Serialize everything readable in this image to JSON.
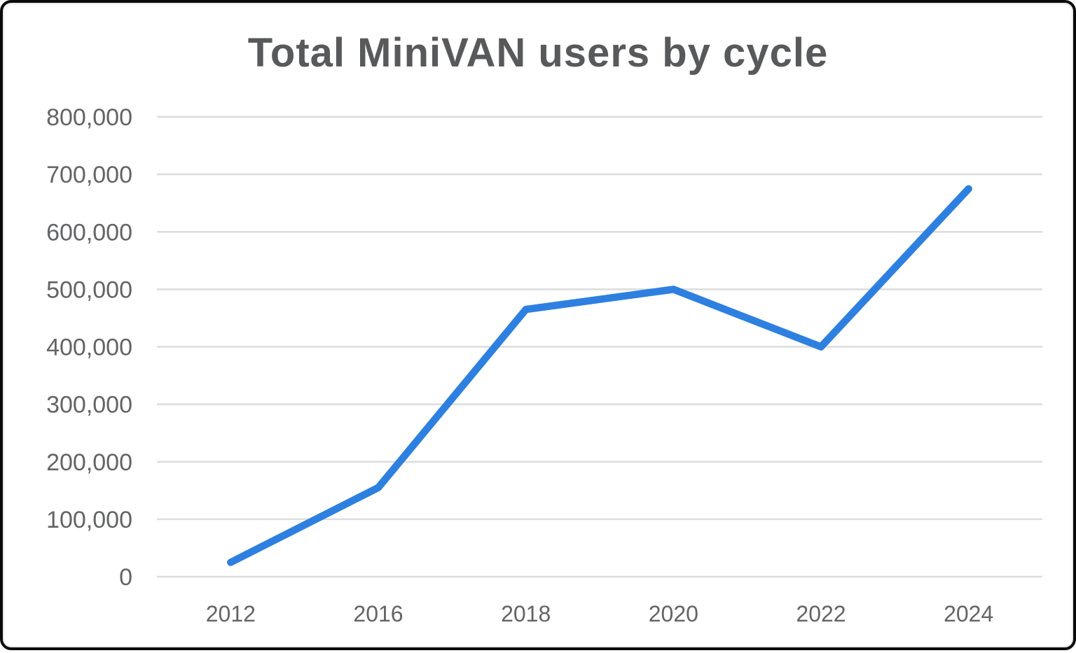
{
  "chart_data": {
    "type": "line",
    "title": "Total MiniVAN users by cycle",
    "categories": [
      "2012",
      "2016",
      "2018",
      "2020",
      "2022",
      "2024"
    ],
    "series": [
      {
        "name": "Total MiniVAN users",
        "values": [
          25000,
          155000,
          465000,
          500000,
          400000,
          675000
        ]
      }
    ],
    "xlabel": "",
    "ylabel": "",
    "ylim": [
      0,
      800000
    ],
    "ytick_step": 100000,
    "ytick_labels": [
      "0",
      "100,000",
      "200,000",
      "300,000",
      "400,000",
      "500,000",
      "600,000",
      "700,000",
      "800,000"
    ],
    "grid": "horizontal-only",
    "legend_position": "none",
    "colors": {
      "line": "#2E80E0",
      "gridline": "#DCDCDC",
      "title_text": "#58595B",
      "axis_tick_text": "#636466",
      "card_border": "#0B0B0B",
      "background": "#FFFFFF"
    }
  }
}
